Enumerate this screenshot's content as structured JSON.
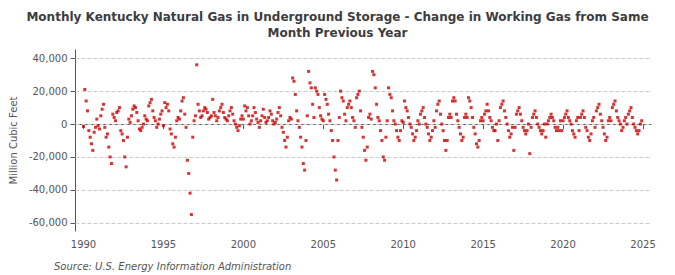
{
  "chart_data": {
    "type": "scatter",
    "title": "Monthly Kentucky Natural Gas in Underground Storage - Change in Working Gas from Same\nMonth Previous Year",
    "ylabel": "Million Cubic Feet",
    "annotations": [
      "Source: U.S. Energy Information Administration"
    ],
    "color": "#CC0000",
    "marker": "square",
    "grid": true,
    "xlim": [
      1989.5,
      2025.5
    ],
    "ylim": [
      -65000,
      45000
    ],
    "xticks": [
      1990,
      1995,
      2000,
      2005,
      2010,
      2015,
      2020,
      2025
    ],
    "yticks": [
      {
        "value": -60000,
        "label": "-60,000"
      },
      {
        "value": -40000,
        "label": "-40,000"
      },
      {
        "value": -20000,
        "label": "-20,000"
      },
      0,
      {
        "value": 20000,
        "label": "20,000"
      },
      {
        "value": 40000,
        "label": "40,000"
      }
    ],
    "x": [
      1990,
      1990.0833333333333,
      1990.1666666666667,
      1990.25,
      1990.3333333333333,
      1990.4166666666667,
      1990.5,
      1990.5833333333333,
      1990.6666666666667,
      1990.75,
      1990.8333333333333,
      1990.9166666666667,
      1991,
      1991.0833333333333,
      1991.1666666666667,
      1991.25,
      1991.3333333333333,
      1991.4166666666667,
      1991.5,
      1991.5833333333333,
      1991.6666666666667,
      1991.75,
      1991.8333333333333,
      1991.9166666666667,
      1992,
      1992.0833333333333,
      1992.1666666666667,
      1992.25,
      1992.3333333333333,
      1992.4166666666667,
      1992.5,
      1992.5833333333333,
      1992.6666666666667,
      1992.75,
      1992.8333333333333,
      1992.9166666666667,
      1993,
      1993.0833333333333,
      1993.1666666666667,
      1993.25,
      1993.3333333333333,
      1993.4166666666667,
      1993.5,
      1993.5833333333333,
      1993.6666666666667,
      1993.75,
      1993.8333333333333,
      1993.9166666666667,
      1994,
      1994.0833333333333,
      1994.1666666666667,
      1994.25,
      1994.3333333333333,
      1994.4166666666667,
      1994.5,
      1994.5833333333333,
      1994.6666666666667,
      1994.75,
      1994.8333333333333,
      1994.9166666666667,
      1995,
      1995.0833333333333,
      1995.1666666666667,
      1995.25,
      1995.3333333333333,
      1995.4166666666667,
      1995.5,
      1995.5833333333333,
      1995.6666666666667,
      1995.75,
      1995.8333333333333,
      1995.9166666666667,
      1996,
      1996.0833333333333,
      1996.1666666666667,
      1996.25,
      1996.3333333333333,
      1996.4166666666667,
      1996.5,
      1996.5833333333333,
      1996.6666666666667,
      1996.75,
      1996.8333333333333,
      1996.9166666666667,
      1997,
      1997.0833333333333,
      1997.1666666666667,
      1997.25,
      1997.3333333333333,
      1997.4166666666667,
      1997.5,
      1997.5833333333333,
      1997.6666666666667,
      1997.75,
      1997.8333333333333,
      1997.9166666666667,
      1998,
      1998.0833333333333,
      1998.1666666666667,
      1998.25,
      1998.3333333333333,
      1998.4166666666667,
      1998.5,
      1998.5833333333333,
      1998.6666666666667,
      1998.75,
      1998.8333333333333,
      1998.9166666666667,
      1999,
      1999.0833333333333,
      1999.1666666666667,
      1999.25,
      1999.3333333333333,
      1999.4166666666667,
      1999.5,
      1999.5833333333333,
      1999.6666666666667,
      1999.75,
      1999.8333333333333,
      1999.9166666666667,
      2000,
      2000.0833333333333,
      2000.1666666666667,
      2000.25,
      2000.3333333333333,
      2000.4166666666667,
      2000.5,
      2000.5833333333333,
      2000.6666666666667,
      2000.75,
      2000.8333333333333,
      2000.9166666666667,
      2001,
      2001.0833333333333,
      2001.1666666666667,
      2001.25,
      2001.3333333333333,
      2001.4166666666667,
      2001.5,
      2001.5833333333333,
      2001.6666666666667,
      2001.75,
      2001.8333333333333,
      2001.9166666666667,
      2002,
      2002.0833333333333,
      2002.1666666666667,
      2002.25,
      2002.3333333333333,
      2002.4166666666667,
      2002.5,
      2002.5833333333333,
      2002.6666666666667,
      2002.75,
      2002.8333333333333,
      2002.9166666666667,
      2003,
      2003.0833333333333,
      2003.1666666666667,
      2003.25,
      2003.3333333333333,
      2003.4166666666667,
      2003.5,
      2003.5833333333333,
      2003.6666666666667,
      2003.75,
      2003.8333333333333,
      2003.9166666666667,
      2004,
      2004.0833333333333,
      2004.1666666666667,
      2004.25,
      2004.3333333333333,
      2004.4166666666667,
      2004.5,
      2004.5833333333333,
      2004.6666666666667,
      2004.75,
      2004.8333333333333,
      2004.9166666666667,
      2005,
      2005.0833333333333,
      2005.1666666666667,
      2005.25,
      2005.3333333333333,
      2005.4166666666667,
      2005.5,
      2005.5833333333333,
      2005.6666666666667,
      2005.75,
      2005.8333333333333,
      2005.9166666666667,
      2006,
      2006.0833333333333,
      2006.1666666666667,
      2006.25,
      2006.3333333333333,
      2006.4166666666667,
      2006.5,
      2006.5833333333333,
      2006.6666666666667,
      2006.75,
      2006.8333333333333,
      2006.9166666666667,
      2007,
      2007.0833333333333,
      2007.1666666666667,
      2007.25,
      2007.3333333333333,
      2007.4166666666667,
      2007.5,
      2007.5833333333333,
      2007.6666666666667,
      2007.75,
      2007.8333333333333,
      2007.9166666666667,
      2008,
      2008.0833333333333,
      2008.1666666666667,
      2008.25,
      2008.3333333333333,
      2008.4166666666667,
      2008.5,
      2008.5833333333333,
      2008.6666666666667,
      2008.75,
      2008.8333333333333,
      2008.9166666666667,
      2009,
      2009.0833333333333,
      2009.1666666666667,
      2009.25,
      2009.3333333333333,
      2009.4166666666667,
      2009.5,
      2009.5833333333333,
      2009.6666666666667,
      2009.75,
      2009.8333333333333,
      2009.9166666666667,
      2010,
      2010.0833333333333,
      2010.1666666666667,
      2010.25,
      2010.3333333333333,
      2010.4166666666667,
      2010.5,
      2010.5833333333333,
      2010.6666666666667,
      2010.75,
      2010.8333333333333,
      2010.9166666666667,
      2011,
      2011.0833333333333,
      2011.1666666666667,
      2011.25,
      2011.3333333333333,
      2011.4166666666667,
      2011.5,
      2011.5833333333333,
      2011.6666666666667,
      2011.75,
      2011.8333333333333,
      2011.9166666666667,
      2012,
      2012.0833333333333,
      2012.1666666666667,
      2012.25,
      2012.3333333333333,
      2012.4166666666667,
      2012.5,
      2012.5833333333333,
      2012.6666666666667,
      2012.75,
      2012.8333333333333,
      2012.9166666666667,
      2013,
      2013.0833333333333,
      2013.1666666666667,
      2013.25,
      2013.3333333333333,
      2013.4166666666667,
      2013.5,
      2013.5833333333333,
      2013.6666666666667,
      2013.75,
      2013.8333333333333,
      2013.9166666666667,
      2014,
      2014.0833333333333,
      2014.1666666666667,
      2014.25,
      2014.3333333333333,
      2014.4166666666667,
      2014.5,
      2014.5833333333333,
      2014.6666666666667,
      2014.75,
      2014.8333333333333,
      2014.9166666666667,
      2015,
      2015.0833333333333,
      2015.1666666666667,
      2015.25,
      2015.3333333333333,
      2015.4166666666667,
      2015.5,
      2015.5833333333333,
      2015.6666666666667,
      2015.75,
      2015.8333333333333,
      2015.9166666666667,
      2016,
      2016.0833333333333,
      2016.1666666666667,
      2016.25,
      2016.3333333333333,
      2016.4166666666667,
      2016.5,
      2016.5833333333333,
      2016.6666666666667,
      2016.75,
      2016.8333333333333,
      2016.9166666666667,
      2017,
      2017.0833333333333,
      2017.1666666666667,
      2017.25,
      2017.3333333333333,
      2017.4166666666667,
      2017.5,
      2017.5833333333333,
      2017.6666666666667,
      2017.75,
      2017.8333333333333,
      2017.9166666666667,
      2018,
      2018.0833333333333,
      2018.1666666666667,
      2018.25,
      2018.3333333333333,
      2018.4166666666667,
      2018.5,
      2018.5833333333333,
      2018.6666666666667,
      2018.75,
      2018.8333333333333,
      2018.9166666666667,
      2019,
      2019.0833333333333,
      2019.1666666666667,
      2019.25,
      2019.3333333333333,
      2019.4166666666667,
      2019.5,
      2019.5833333333333,
      2019.6666666666667,
      2019.75,
      2019.8333333333333,
      2019.9166666666667,
      2020,
      2020.0833333333333,
      2020.1666666666667,
      2020.25,
      2020.3333333333333,
      2020.4166666666667,
      2020.5,
      2020.5833333333333,
      2020.6666666666667,
      2020.75,
      2020.8333333333333,
      2020.9166666666667,
      2021,
      2021.0833333333333,
      2021.1666666666667,
      2021.25,
      2021.3333333333333,
      2021.4166666666667,
      2021.5,
      2021.5833333333333,
      2021.6666666666667,
      2021.75,
      2021.8333333333333,
      2021.9166666666667,
      2022,
      2022.0833333333333,
      2022.1666666666667,
      2022.25,
      2022.3333333333333,
      2022.4166666666667,
      2022.5,
      2022.5833333333333,
      2022.6666666666667,
      2022.75,
      2022.8333333333333,
      2022.9166666666667,
      2023,
      2023.0833333333333,
      2023.1666666666667,
      2023.25,
      2023.3333333333333,
      2023.4166666666667,
      2023.5,
      2023.5833333333333,
      2023.6666666666667,
      2023.75,
      2023.8333333333333,
      2023.9166666666667,
      2024,
      2024.0833333333333,
      2024.1666666666667,
      2024.25,
      2024.3333333333333,
      2024.4166666666667,
      2024.5,
      2024.5833333333333,
      2024.6666666666667,
      2024.75,
      2024.8333333333333,
      2024.9166666666667
    ],
    "values": [
      -1500,
      21000,
      14000,
      8000,
      -4000,
      -8000,
      -12000,
      -16000,
      -5000,
      -2000,
      3000,
      -1000,
      -3000,
      5000,
      9000,
      12000,
      -2000,
      -8000,
      -6000,
      -14000,
      -20000,
      -24000,
      6000,
      4000,
      2000,
      7000,
      8000,
      10000,
      -4000,
      -6000,
      -10000,
      -20000,
      -26000,
      -8000,
      3000,
      1000,
      5000,
      9000,
      11000,
      10000,
      7000,
      2000,
      -3000,
      -4000,
      -2000,
      0,
      5000,
      3000,
      2000,
      11000,
      13000,
      15000,
      8000,
      4000,
      2000,
      -2000,
      0,
      3000,
      6000,
      8000,
      -1000,
      13000,
      10000,
      12000,
      8000,
      -3000,
      -6000,
      -12000,
      -14000,
      -8000,
      2000,
      4000,
      3000,
      8000,
      14000,
      16000,
      6000,
      -2000,
      -22000,
      -30000,
      -42000,
      -55000,
      -8000,
      2000,
      5000,
      36000,
      12000,
      8000,
      4000,
      5000,
      8000,
      10000,
      9000,
      7000,
      3000,
      4000,
      5000,
      15000,
      7000,
      5000,
      2000,
      4000,
      8000,
      10000,
      12000,
      7000,
      4000,
      3000,
      2000,
      5000,
      8000,
      10000,
      6000,
      2000,
      0,
      -2000,
      -4000,
      -1000,
      3000,
      5000,
      3000,
      11000,
      8000,
      10000,
      5000,
      0,
      2000,
      5000,
      10000,
      7000,
      3000,
      1000,
      -2000,
      2000,
      5000,
      9000,
      4000,
      1000,
      2000,
      4000,
      8000,
      6000,
      2000,
      0,
      1000,
      3000,
      7000,
      10000,
      5000,
      -2000,
      -5000,
      -10000,
      -14000,
      -8000,
      2000,
      4000,
      3000,
      28000,
      26000,
      18000,
      8000,
      2000,
      -2000,
      -8000,
      -14000,
      -24000,
      -28000,
      -10000,
      5000,
      32000,
      25000,
      22000,
      12000,
      4000,
      22000,
      20000,
      18000,
      10000,
      5000,
      3000,
      2000,
      18000,
      15000,
      12000,
      6000,
      2000,
      -4000,
      -10000,
      -20000,
      -28000,
      -34000,
      -10000,
      4000,
      20000,
      16000,
      14000,
      6000,
      2000,
      10000,
      12000,
      14000,
      10000,
      4000,
      2000,
      -2000,
      16000,
      18000,
      20000,
      8000,
      -2000,
      -8000,
      -16000,
      -22000,
      -14000,
      4000,
      6000,
      3000,
      32000,
      30000,
      22000,
      12000,
      4000,
      2000,
      -4000,
      -10000,
      -20000,
      -22000,
      -8000,
      2000,
      22000,
      18000,
      16000,
      8000,
      2000,
      0,
      -4000,
      -8000,
      -10000,
      -4000,
      2000,
      1000,
      14000,
      10000,
      8000,
      4000,
      0,
      -2000,
      -6000,
      -10000,
      -8000,
      -4000,
      2000,
      0,
      6000,
      8000,
      10000,
      4000,
      0,
      -2000,
      -6000,
      -10000,
      -8000,
      -4000,
      2000,
      -2000,
      8000,
      12000,
      14000,
      6000,
      0,
      -4000,
      -10000,
      -16000,
      -10000,
      4000,
      6000,
      4000,
      14000,
      16000,
      14000,
      6000,
      2000,
      -2000,
      -6000,
      -10000,
      -8000,
      4000,
      6000,
      4000,
      16000,
      14000,
      10000,
      4000,
      -2000,
      -6000,
      -12000,
      -14000,
      -10000,
      2000,
      4000,
      2000,
      6000,
      8000,
      12000,
      8000,
      4000,
      2000,
      -2000,
      -4000,
      -4000,
      0,
      -10000,
      2000,
      10000,
      12000,
      14000,
      8000,
      4000,
      0,
      -4000,
      -8000,
      -6000,
      -2000,
      -16000,
      -2000,
      6000,
      8000,
      10000,
      6000,
      2000,
      -2000,
      -4000,
      -6000,
      -4000,
      0,
      -18000,
      -2000,
      4000,
      6000,
      8000,
      4000,
      0,
      -2000,
      -4000,
      -6000,
      -4000,
      0,
      -8000,
      0,
      2000,
      4000,
      6000,
      4000,
      2000,
      -2000,
      -4000,
      -2000,
      -4000,
      2000,
      -4000,
      2000,
      4000,
      6000,
      8000,
      4000,
      2000,
      0,
      -4000,
      -6000,
      -8000,
      2000,
      4000,
      -4000,
      4000,
      6000,
      8000,
      4000,
      -2000,
      -4000,
      -8000,
      -10000,
      -6000,
      2000,
      4000,
      -2000,
      8000,
      10000,
      12000,
      6000,
      2000,
      -2000,
      -6000,
      -10000,
      -8000,
      2000,
      4000,
      2000,
      10000,
      12000,
      14000,
      8000,
      4000,
      2000,
      0,
      -4000,
      -2000,
      2000,
      4000,
      0,
      6000,
      8000,
      10000,
      4000,
      0,
      -2000,
      -4000,
      -6000,
      -4000,
      0,
      2000
    ]
  }
}
